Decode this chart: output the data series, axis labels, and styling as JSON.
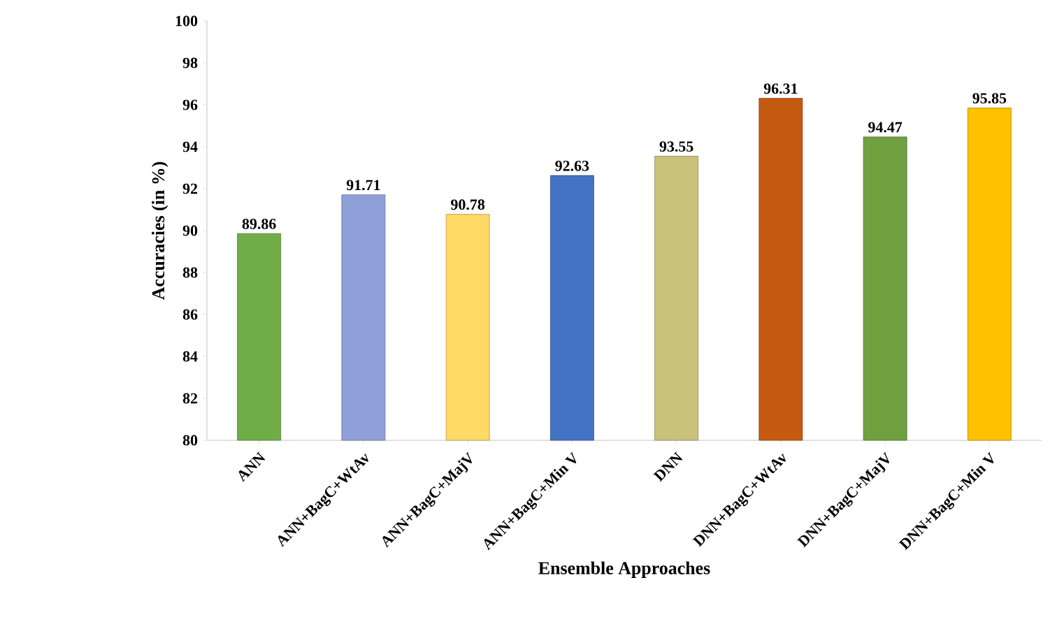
{
  "chart_data": {
    "type": "bar",
    "xlabel": "Ensemble Approaches",
    "ylabel": "Accuracies (in %)",
    "categories": [
      "ANN",
      "ANN+BagC+WtAv",
      "ANN+BagC+MajV",
      "ANN+BagC+Min V",
      "DNN",
      "DNN+BagC+WtAv",
      "DNN+BagC+MajV",
      "DNN+BagC+Min V"
    ],
    "values": [
      89.86,
      91.71,
      90.78,
      92.63,
      93.55,
      96.31,
      94.47,
      95.85
    ],
    "colors": [
      "#70ad47",
      "#8fa0d8",
      "#ffd966",
      "#4472c4",
      "#c9c27a",
      "#c55a11",
      "#70a040",
      "#ffc000"
    ],
    "data_labels": true,
    "ylim": [
      80,
      100
    ],
    "yticks": [
      80,
      82,
      84,
      86,
      88,
      90,
      92,
      94,
      96,
      98,
      100
    ]
  }
}
